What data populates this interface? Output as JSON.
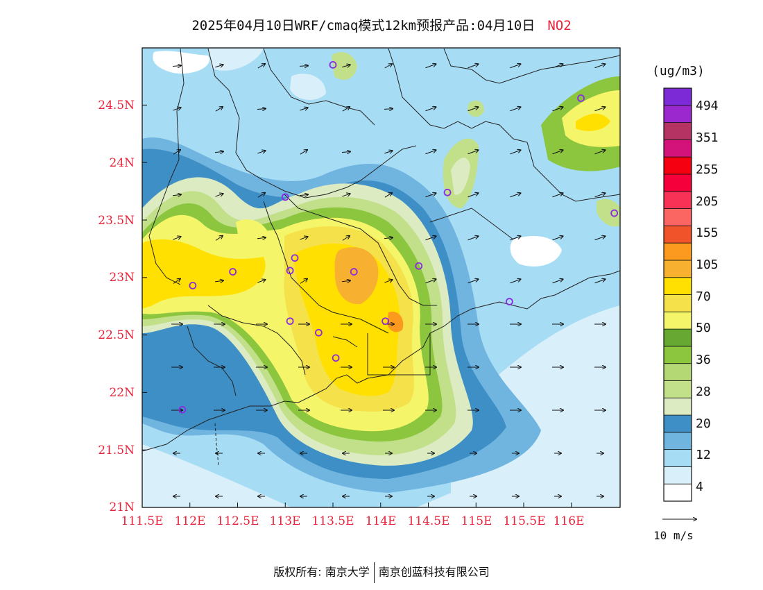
{
  "title": {
    "text": "2025年04月10日WRF/cmaq模式12km预报产品:04月10日",
    "species": "NO2"
  },
  "map": {
    "lat_labels": [
      "24.5N",
      "24N",
      "23.5N",
      "23N",
      "22.5N",
      "22N",
      "21.5N",
      "21N"
    ],
    "lon_labels": [
      "111.5E",
      "112E",
      "112.5E",
      "113E",
      "113.5E",
      "114E",
      "114.5E",
      "115E",
      "115.5E",
      "116E"
    ],
    "stations": [
      {
        "lon": 113.5,
        "lat": 24.85
      },
      {
        "lon": 116.1,
        "lat": 24.56
      },
      {
        "lon": 113.0,
        "lat": 23.7
      },
      {
        "lon": 114.7,
        "lat": 23.74
      },
      {
        "lon": 116.45,
        "lat": 23.56
      },
      {
        "lon": 113.1,
        "lat": 23.17
      },
      {
        "lon": 113.05,
        "lat": 23.06
      },
      {
        "lon": 112.45,
        "lat": 23.05
      },
      {
        "lon": 112.03,
        "lat": 22.93
      },
      {
        "lon": 113.72,
        "lat": 23.05
      },
      {
        "lon": 114.4,
        "lat": 23.1
      },
      {
        "lon": 113.05,
        "lat": 22.62
      },
      {
        "lon": 113.35,
        "lat": 22.52
      },
      {
        "lon": 114.05,
        "lat": 22.62
      },
      {
        "lon": 113.53,
        "lat": 22.3
      },
      {
        "lon": 115.35,
        "lat": 22.79
      },
      {
        "lon": 111.92,
        "lat": 21.85
      }
    ]
  },
  "colorbar": {
    "units": "(ug/m3)",
    "colors": [
      "#ffffff",
      "#d9effa",
      "#a7dcf5",
      "#6fb5e0",
      "#3f8fc7",
      "#dcebc2",
      "#c2e08a",
      "#b4d874",
      "#8cc63f",
      "#66a832",
      "#f5f56a",
      "#f5e14a",
      "#ffe000",
      "#f8b030",
      "#fb9a1e",
      "#f0522a",
      "#fb6663",
      "#f73256",
      "#f5003a",
      "#f50010",
      "#d3127a",
      "#b53362",
      "#9b28cf",
      "#7b2ad6"
    ],
    "labels": [
      "4",
      "12",
      "20",
      "28",
      "36",
      "50",
      "70",
      "105",
      "155",
      "205",
      "255",
      "351",
      "494"
    ]
  },
  "vector_label": "10 m/s",
  "copyright": {
    "left": "版权所有: 南京大学",
    "right": "南京创蓝科技有限公司"
  }
}
